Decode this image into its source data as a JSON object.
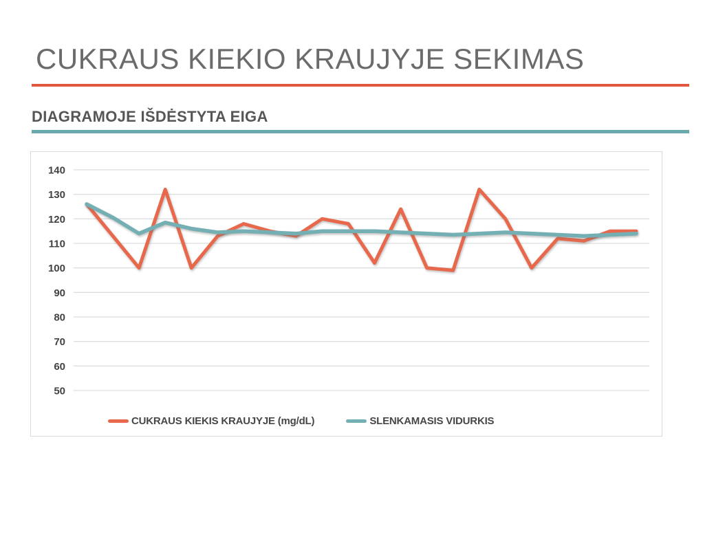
{
  "page": {
    "background": "#ffffff"
  },
  "header": {
    "title": "CUKRAUS KIEKIO KRAUJYJE SEKIMAS",
    "title_color": "#6b6b6b",
    "rule_color": "#e0573e"
  },
  "section": {
    "subtitle": "DIAGRAMOJE IŠDĖSTYTA EIGA",
    "subtitle_color": "#565656",
    "rule_color": "#69a8ad"
  },
  "chart_data": {
    "type": "line",
    "title": "",
    "xlabel": "",
    "ylabel": "",
    "x": [
      1,
      2,
      3,
      4,
      5,
      6,
      7,
      8,
      9,
      10,
      11,
      12,
      13,
      14,
      15,
      16,
      17,
      18,
      19,
      20,
      21,
      22
    ],
    "x_axis_labels_visible": false,
    "series": [
      {
        "name": "CUKRAUS KIEKIS KRAUJYJE (mg/dL)",
        "color": "#e8684b",
        "values": [
          126,
          113,
          100,
          132,
          100,
          113,
          118,
          115,
          113,
          120,
          118,
          102,
          124,
          100,
          99,
          132,
          120,
          100,
          112,
          111,
          115,
          115
        ]
      },
      {
        "name": "SLENKAMASIS VIDURKIS",
        "color": "#74afb4",
        "values": [
          126,
          120.5,
          114,
          118.5,
          116,
          114.5,
          115,
          114.5,
          114,
          115,
          115,
          115,
          114.5,
          114,
          113.5,
          114,
          114.5,
          114,
          113.5,
          113,
          113.5,
          114
        ]
      }
    ],
    "ylim": [
      50,
      140
    ],
    "ytick_step": 10,
    "yticks": [
      140,
      130,
      120,
      110,
      100,
      90,
      80,
      70,
      60,
      50
    ],
    "grid": "horizontal",
    "grid_color": "#dcdfdf",
    "tick_label_color": "#424242",
    "legend_position": "bottom"
  }
}
